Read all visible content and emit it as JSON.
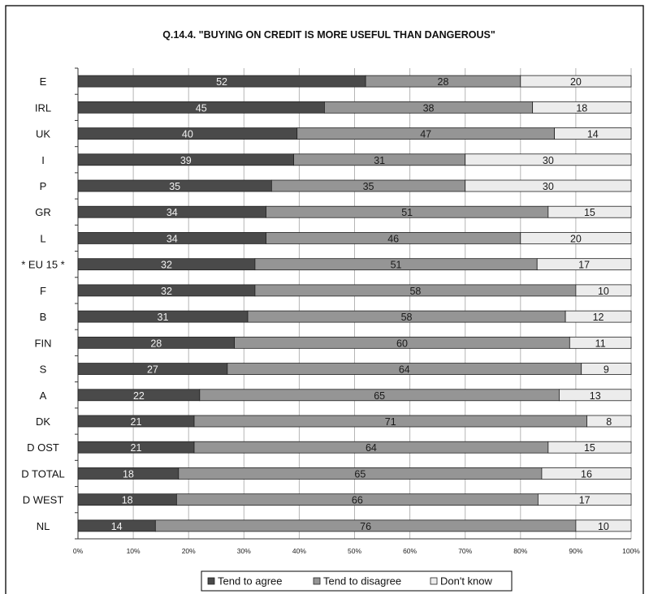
{
  "colors": {
    "agree": "#4a4a4a",
    "disagree": "#959595",
    "dont_know": "#ececec",
    "outline": "#222222",
    "grid": "#b5b5b5",
    "frame": "#000000"
  },
  "chart_data": {
    "type": "bar",
    "orientation": "horizontal",
    "stacked": true,
    "percent_stacked": true,
    "title": "Q.14.4.  \"BUYING ON CREDIT IS MORE USEFUL THAN DANGEROUS\"",
    "xlabel": "",
    "ylabel": "",
    "xlim": [
      0,
      100
    ],
    "grid": true,
    "legend_position": "bottom",
    "x_tick_labels": [
      "0%",
      "10%",
      "20%",
      "30%",
      "40%",
      "50%",
      "60%",
      "70%",
      "80%",
      "90%",
      "100%"
    ],
    "categories": [
      "E",
      "IRL",
      "UK",
      "I",
      "P",
      "GR",
      "L",
      "* EU 15 *",
      "F",
      "B",
      "FIN",
      "S",
      "A",
      "DK",
      "D OST",
      "D TOTAL",
      "D WEST",
      "NL"
    ],
    "series": [
      {
        "name": "Tend to agree",
        "values": [
          52,
          45,
          40,
          39,
          35,
          34,
          34,
          32,
          32,
          31,
          28,
          27,
          22,
          21,
          21,
          18,
          18,
          14
        ]
      },
      {
        "name": "Tend to disagree",
        "values": [
          28,
          38,
          47,
          31,
          35,
          51,
          46,
          51,
          58,
          58,
          60,
          64,
          65,
          71,
          64,
          65,
          66,
          76
        ]
      },
      {
        "name": "Don't know",
        "values": [
          20,
          18,
          14,
          30,
          30,
          15,
          20,
          17,
          10,
          12,
          11,
          9,
          13,
          8,
          15,
          16,
          17,
          10
        ]
      }
    ]
  }
}
